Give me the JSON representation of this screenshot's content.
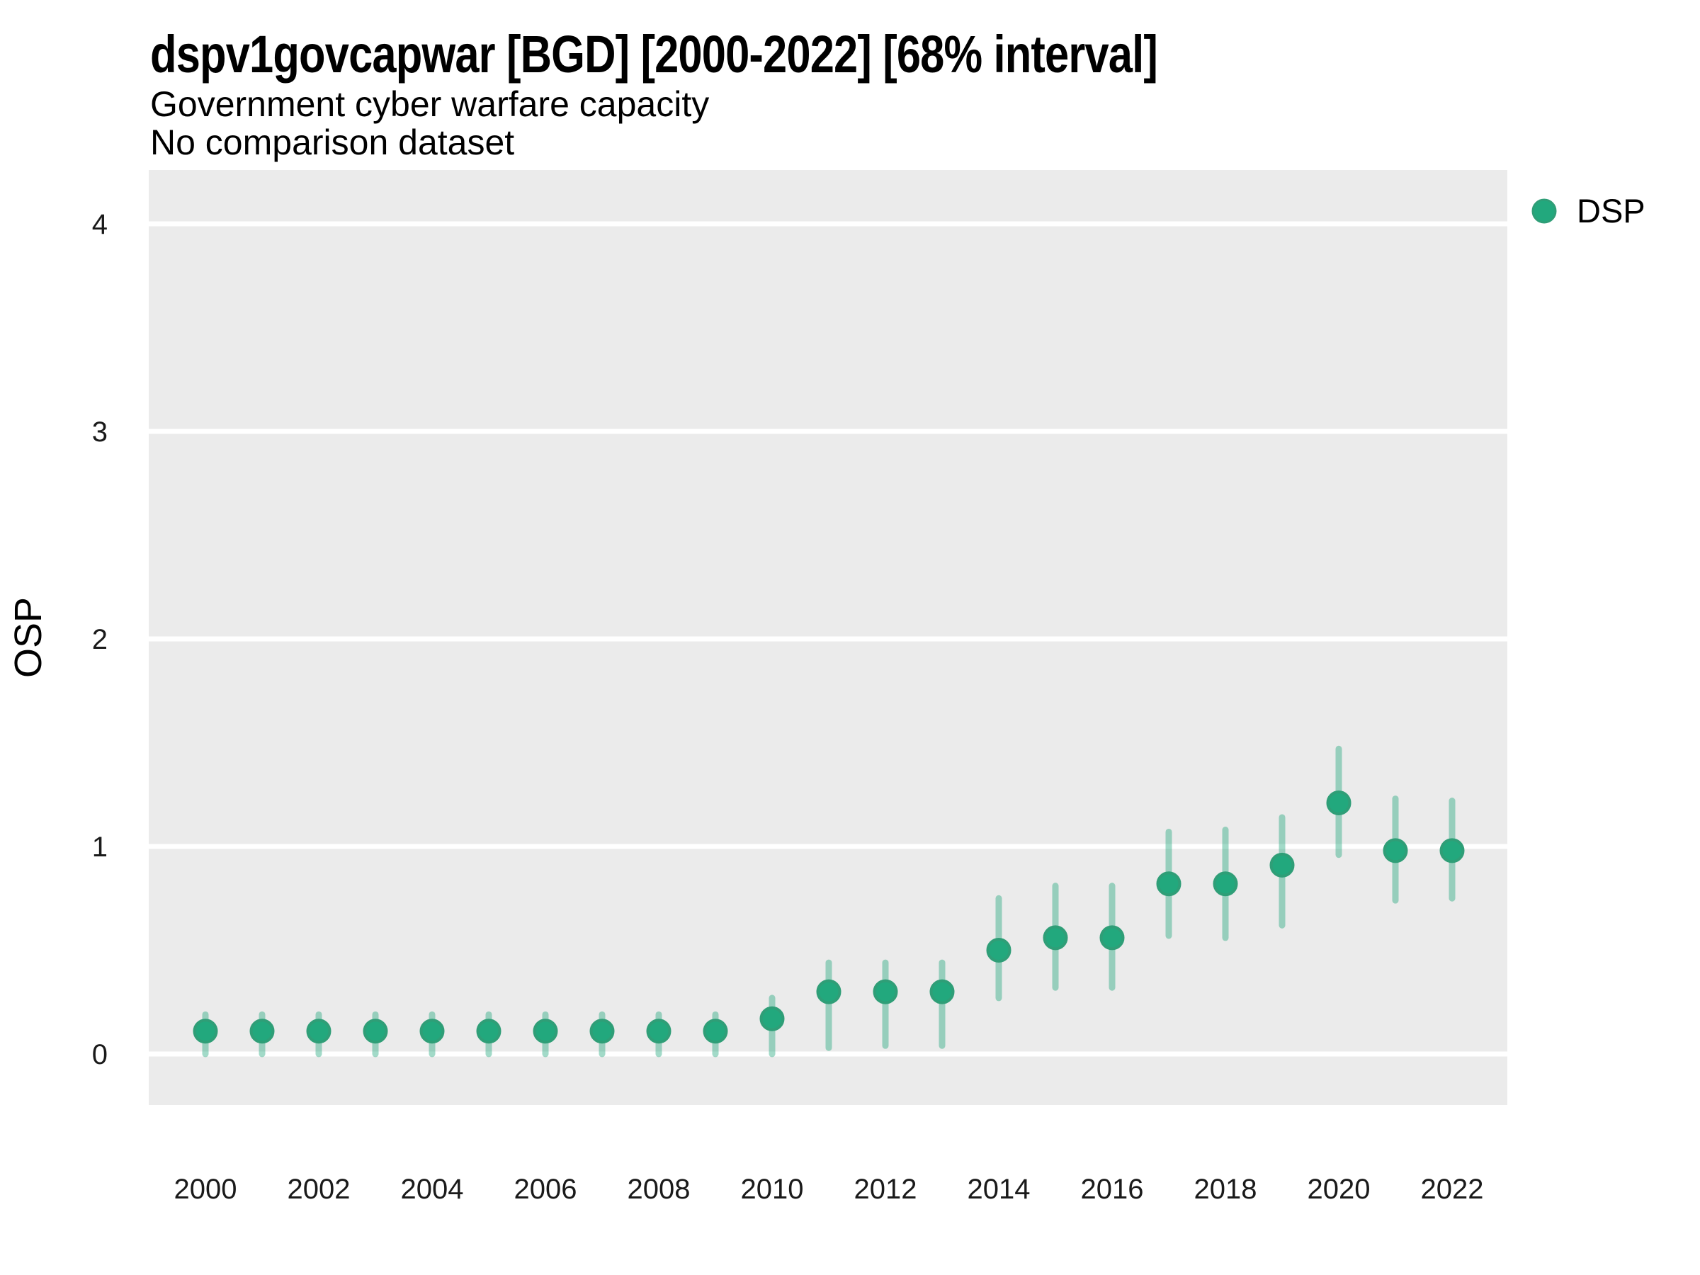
{
  "header": {
    "title": "dspv1govcapwar [BGD] [2000-2022] [68% interval]",
    "subtitle": "Government cyber warfare capacity",
    "comparison_note": "No comparison dataset"
  },
  "legend": {
    "position": "right",
    "items": [
      {
        "label": "DSP",
        "marker": "circle-icon",
        "color": "#22a87d"
      }
    ]
  },
  "colors": {
    "panel_background": "#ebebeb",
    "gridline": "#ffffff",
    "point_fill": "#22a87d",
    "point_ring": "#2f9e77",
    "interval_bar": "rgba(34,168,125,0.42)",
    "text": "#000000",
    "tick_text": "#1a1a1a"
  },
  "chart_data": {
    "type": "scatter",
    "title": "dspv1govcapwar [BGD] [2000-2022] [68% interval]",
    "subtitle": "Government cyber warfare capacity",
    "note": "No comparison dataset",
    "interval_level": "68%",
    "xlabel": "",
    "ylabel": "OSP",
    "xticks": [
      2000,
      2002,
      2004,
      2006,
      2008,
      2010,
      2012,
      2014,
      2016,
      2018,
      2020,
      2022
    ],
    "yticks": [
      0,
      1,
      2,
      3,
      4
    ],
    "ylim": [
      -0.25,
      4.25
    ],
    "xlim": [
      1999,
      2023
    ],
    "grid": "major-horizontal",
    "legend_position": "right",
    "x": [
      2000,
      2001,
      2002,
      2003,
      2004,
      2005,
      2006,
      2007,
      2008,
      2009,
      2010,
      2011,
      2012,
      2013,
      2014,
      2015,
      2016,
      2017,
      2018,
      2019,
      2020,
      2021,
      2022
    ],
    "series": [
      {
        "name": "DSP",
        "values": [
          0.11,
          0.11,
          0.11,
          0.11,
          0.11,
          0.11,
          0.11,
          0.11,
          0.11,
          0.11,
          0.17,
          0.3,
          0.3,
          0.3,
          0.5,
          0.56,
          0.56,
          0.82,
          0.82,
          0.91,
          1.21,
          0.98,
          0.98
        ],
        "interval_low": [
          0.0,
          0.0,
          0.0,
          0.0,
          0.0,
          0.0,
          0.0,
          0.0,
          0.0,
          0.0,
          0.0,
          0.03,
          0.04,
          0.04,
          0.27,
          0.32,
          0.32,
          0.57,
          0.56,
          0.62,
          0.96,
          0.74,
          0.75
        ],
        "interval_high": [
          0.19,
          0.19,
          0.19,
          0.19,
          0.19,
          0.19,
          0.19,
          0.19,
          0.19,
          0.19,
          0.27,
          0.44,
          0.44,
          0.44,
          0.75,
          0.81,
          0.81,
          1.07,
          1.08,
          1.14,
          1.47,
          1.23,
          1.22
        ]
      }
    ]
  }
}
